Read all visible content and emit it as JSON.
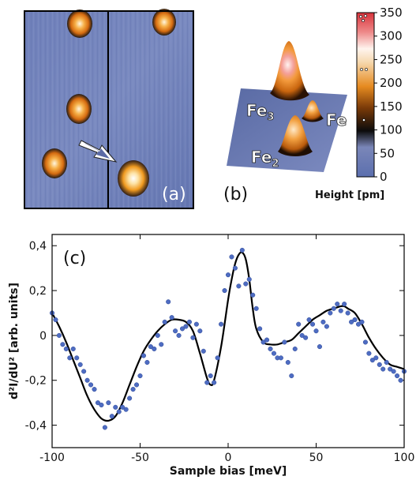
{
  "panels": {
    "a": {
      "label": "(a)"
    },
    "b": {
      "label": "(b)",
      "peak_labels": [
        {
          "text": "Fe",
          "sub": "3"
        },
        {
          "text": "Fe",
          "sub": ""
        },
        {
          "text": "Fe",
          "sub": "2"
        }
      ]
    },
    "c": {
      "label": "(c)"
    }
  },
  "colorbar": {
    "label": "Height [pm]",
    "min": 0,
    "max": 350,
    "ticks": [
      0,
      50,
      100,
      150,
      200,
      250,
      300,
      350
    ],
    "colors": {
      "low": "#5b6fae",
      "mid": "#0c0c0c",
      "orange": "#e68a20",
      "light": "#f6d9b0",
      "high": "#d8333c"
    }
  },
  "chart_data": {
    "type": "scatter",
    "xlabel": "Sample bias [meV]",
    "ylabel": "d²I/dU² [arb. units]",
    "xlim": [
      -100,
      100
    ],
    "ylim": [
      -0.5,
      0.45
    ],
    "xticks": [
      -100,
      -50,
      0,
      50,
      100
    ],
    "yticks": [
      -0.4,
      -0.2,
      0,
      0.2,
      0.4
    ],
    "ytick_labels": [
      "-0,4",
      "-0,2",
      "0",
      "0,2",
      "0,4"
    ],
    "series": [
      {
        "kind": "points",
        "color": "#4e6cc2",
        "x": [
          -100,
          -98,
          -96,
          -94,
          -92,
          -90,
          -88,
          -86,
          -84,
          -82,
          -80,
          -78,
          -76,
          -74,
          -72,
          -70,
          -68,
          -66,
          -64,
          -62,
          -60,
          -58,
          -56,
          -54,
          -52,
          -50,
          -48,
          -46,
          -44,
          -42,
          -40,
          -38,
          -36,
          -34,
          -32,
          -30,
          -28,
          -26,
          -24,
          -22,
          -20,
          -18,
          -16,
          -14,
          -12,
          -10,
          -8,
          -6,
          -4,
          -2,
          0,
          2,
          4,
          6,
          8,
          10,
          12,
          14,
          16,
          18,
          20,
          22,
          24,
          26,
          28,
          30,
          32,
          34,
          36,
          38,
          40,
          42,
          44,
          46,
          48,
          50,
          52,
          54,
          56,
          58,
          60,
          62,
          64,
          66,
          68,
          70,
          72,
          74,
          76,
          78,
          80,
          82,
          84,
          86,
          88,
          90,
          92,
          94,
          96,
          98,
          100
        ],
        "y": [
          0.1,
          0.07,
          0.0,
          -0.04,
          -0.06,
          -0.1,
          -0.06,
          -0.1,
          -0.13,
          -0.16,
          -0.2,
          -0.22,
          -0.24,
          -0.3,
          -0.31,
          -0.41,
          -0.3,
          -0.36,
          -0.32,
          -0.34,
          -0.32,
          -0.33,
          -0.28,
          -0.24,
          -0.22,
          -0.18,
          -0.09,
          -0.12,
          -0.05,
          -0.06,
          0.0,
          -0.04,
          0.06,
          0.15,
          0.08,
          0.02,
          0.0,
          0.03,
          0.04,
          0.06,
          -0.01,
          0.05,
          0.02,
          -0.07,
          -0.21,
          -0.18,
          -0.21,
          -0.1,
          0.05,
          0.2,
          0.27,
          0.35,
          0.3,
          0.22,
          0.38,
          0.23,
          0.25,
          0.18,
          0.12,
          0.03,
          -0.03,
          -0.02,
          -0.06,
          -0.08,
          -0.1,
          -0.1,
          -0.03,
          -0.12,
          -0.18,
          -0.06,
          0.05,
          0.0,
          -0.01,
          0.07,
          0.05,
          0.02,
          -0.05,
          0.06,
          0.04,
          0.1,
          0.12,
          0.14,
          0.11,
          0.14,
          0.1,
          0.06,
          0.07,
          0.05,
          0.06,
          -0.03,
          -0.08,
          -0.11,
          -0.1,
          -0.13,
          -0.15,
          -0.12,
          -0.15,
          -0.16,
          -0.18,
          -0.2,
          -0.16
        ]
      },
      {
        "kind": "fit",
        "color": "#000000",
        "x": [
          -100,
          -96,
          -92,
          -88,
          -84,
          -80,
          -76,
          -72,
          -68,
          -64,
          -60,
          -56,
          -52,
          -48,
          -44,
          -40,
          -36,
          -32,
          -28,
          -24,
          -20,
          -16,
          -12,
          -10,
          -8,
          -4,
          0,
          2,
          4,
          6,
          8,
          10,
          12,
          14,
          16,
          20,
          24,
          28,
          32,
          36,
          40,
          44,
          48,
          52,
          56,
          60,
          64,
          66,
          68,
          72,
          76,
          80,
          84,
          88,
          92,
          96,
          100
        ],
        "y": [
          0.1,
          0.04,
          -0.03,
          -0.11,
          -0.19,
          -0.27,
          -0.33,
          -0.37,
          -0.38,
          -0.36,
          -0.3,
          -0.22,
          -0.14,
          -0.07,
          -0.02,
          0.02,
          0.05,
          0.07,
          0.07,
          0.06,
          0.02,
          -0.08,
          -0.19,
          -0.22,
          -0.2,
          -0.05,
          0.16,
          0.25,
          0.32,
          0.36,
          0.37,
          0.34,
          0.25,
          0.12,
          0.03,
          -0.03,
          -0.04,
          -0.04,
          -0.03,
          -0.02,
          0.01,
          0.04,
          0.07,
          0.09,
          0.11,
          0.12,
          0.13,
          0.13,
          0.12,
          0.1,
          0.05,
          -0.01,
          -0.06,
          -0.1,
          -0.13,
          -0.14,
          -0.15
        ]
      }
    ]
  }
}
